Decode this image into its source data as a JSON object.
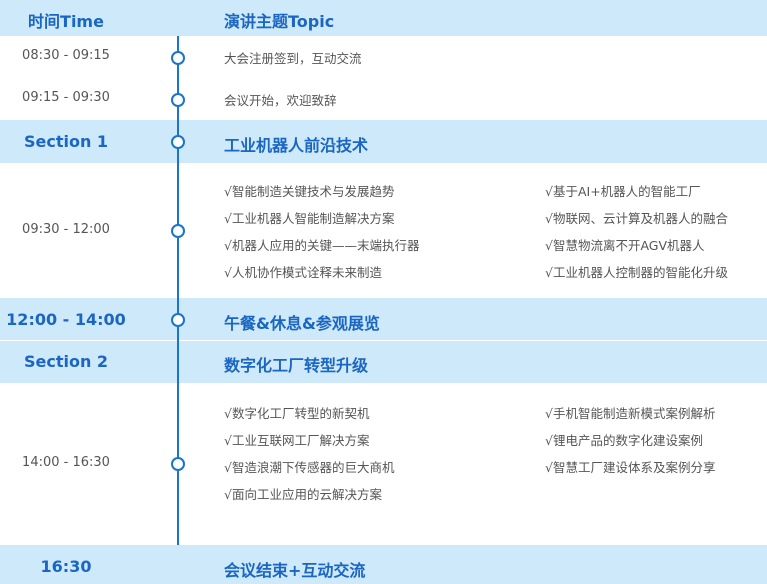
{
  "header": {
    "time": "时间Time",
    "topic": "演讲主题Topic"
  },
  "rows": [
    {
      "time": "08:30 - 09:15",
      "topic": "大会注册签到，互动交流"
    },
    {
      "time": "09:15 - 09:30",
      "topic": "会议开始，欢迎致辞"
    }
  ],
  "section1": {
    "time": "Section 1",
    "title": "工业机器人前沿技术",
    "slot": "09:30 - 12:00",
    "left": [
      "√智能制造关键技术与发展趋势",
      "√工业机器人智能制造解决方案",
      "√机器人应用的关键——末端执行器",
      "√人机协作模式诠释未来制造"
    ],
    "right": [
      "√基于AI+机器人的智能工厂",
      "√物联网、云计算及机器人的融合",
      "√智慧物流离不开AGV机器人",
      "√工业机器人控制器的智能化升级"
    ]
  },
  "lunch": {
    "time": "12:00 - 14:00",
    "title": "午餐&休息&参观展览"
  },
  "section2": {
    "time": "Section 2",
    "title": "数字化工厂转型升级",
    "slot": "14:00 - 16:30",
    "left": [
      "√数字化工厂转型的新契机",
      "√工业互联网工厂解决方案",
      "√智造浪潮下传感器的巨大商机",
      "√面向工业应用的云解决方案"
    ],
    "right": [
      "√手机智能制造新模式案例解析",
      "√锂电产品的数字化建设案例",
      "√智慧工厂建设体系及案例分享"
    ]
  },
  "end": {
    "time": "16:30",
    "title": "会议结束+互动交流"
  },
  "colors": {
    "band": "#cde9fa",
    "accent": "#1b66c2",
    "text": "#555555"
  }
}
